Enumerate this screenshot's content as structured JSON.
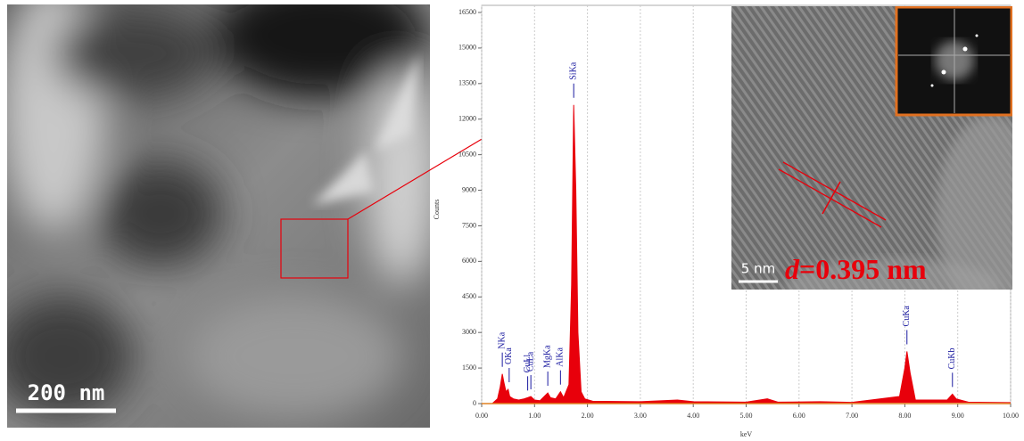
{
  "chart_data": {
    "type": "area",
    "xlabel": "keV",
    "ylabel": "Counts",
    "color": "#e8000b",
    "x": [
      0,
      0.2,
      0.3,
      0.35,
      0.39,
      0.42,
      0.46,
      0.5,
      0.53,
      0.6,
      0.7,
      0.8,
      0.87,
      0.93,
      1.0,
      1.1,
      1.25,
      1.3,
      1.4,
      1.49,
      1.55,
      1.65,
      1.7,
      1.74,
      1.78,
      1.82,
      1.88,
      1.95,
      2.1,
      3.0,
      3.7,
      4.0,
      5.0,
      5.4,
      5.6,
      6.4,
      7.0,
      7.9,
      8.0,
      8.04,
      8.1,
      8.2,
      8.8,
      8.9,
      8.97,
      9.2,
      10
    ],
    "values": [
      0,
      0,
      200,
      700,
      1250,
      900,
      500,
      600,
      300,
      200,
      150,
      200,
      250,
      300,
      150,
      120,
      450,
      250,
      200,
      500,
      250,
      800,
      5000,
      12600,
      9000,
      3000,
      500,
      200,
      100,
      80,
      150,
      80,
      60,
      200,
      60,
      80,
      50,
      300,
      1500,
      2200,
      1300,
      150,
      150,
      400,
      200,
      60,
      40
    ],
    "xlim": [
      0,
      10
    ],
    "xticks": [
      {
        "value": 0,
        "label": "0.00"
      },
      {
        "value": 1,
        "label": "1.00"
      },
      {
        "value": 2,
        "label": "2.00"
      },
      {
        "value": 3,
        "label": "3.00"
      },
      {
        "value": 4,
        "label": "4.00"
      },
      {
        "value": 5,
        "label": "5.00"
      },
      {
        "value": 6,
        "label": "6.00"
      },
      {
        "value": 7,
        "label": "7.00"
      },
      {
        "value": 8,
        "label": "8.00"
      },
      {
        "value": 9,
        "label": "9.00"
      },
      {
        "value": 10,
        "label": "10.00"
      }
    ],
    "ylim": [
      0,
      16500
    ],
    "yticks": [
      0,
      1500,
      3000,
      4500,
      6000,
      7500,
      9000,
      10500,
      12000,
      13500,
      15000,
      16500
    ],
    "grid": true,
    "annotations": [
      {
        "text": "NKa",
        "x": 0.39
      },
      {
        "text": "OKa",
        "x": 0.52
      },
      {
        "text": "CuLl",
        "x": 0.87
      },
      {
        "text": "CuLa",
        "x": 0.93
      },
      {
        "text": "MgKa",
        "x": 1.25
      },
      {
        "text": "AlKa",
        "x": 1.49
      },
      {
        "text": "SiKa",
        "x": 1.74
      },
      {
        "text": "CuKa",
        "x": 8.04
      },
      {
        "text": "CuKb",
        "x": 8.9
      }
    ]
  },
  "tem_image": {
    "scale_bar": "200 nm"
  },
  "inset": {
    "scale_bar": "5 nm",
    "d_symbol": "d",
    "d_value": "=0.395 nm"
  }
}
